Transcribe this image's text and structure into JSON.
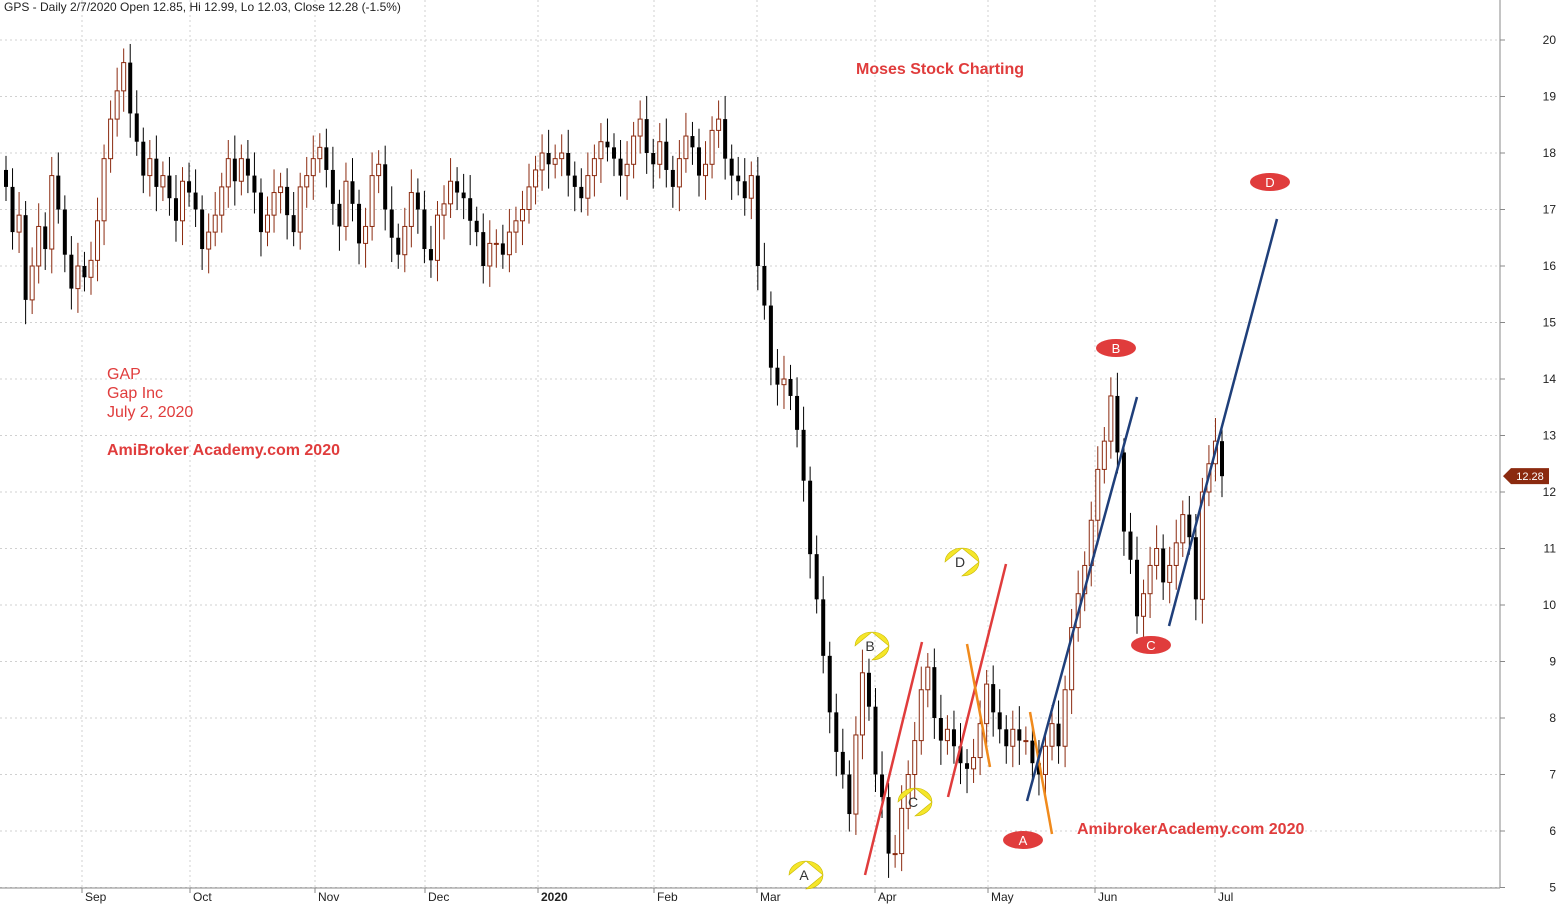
{
  "header": {
    "text": "GPS - Daily 2/7/2020 Open 12.85, Hi 12.99, Lo 12.03, Close 12.28 (-1.5%)"
  },
  "annotations": {
    "moses": "Moses Stock Charting",
    "ticker": "GAP",
    "company": "Gap Inc",
    "date": "July 2, 2020",
    "site1": "AmiBroker Academy.com  2020",
    "site2": "AmibrokerAcademy.com 2020"
  },
  "chart_data": {
    "type": "candlestick",
    "y_ticks": [
      "5",
      "6",
      "7",
      "8",
      "9",
      "10",
      "11",
      "12",
      "13",
      "14",
      "15",
      "16",
      "17",
      "18",
      "19",
      "20"
    ],
    "ylim": [
      5,
      20.6
    ],
    "x_ticks": [
      "Sep",
      "Oct",
      "Nov",
      "Dec",
      "2020",
      "Feb",
      "Mar",
      "Apr",
      "May",
      "Jun",
      "Jul"
    ],
    "last_price": "12.28",
    "colors": {
      "up": "#8b2a0f",
      "down": "#000000",
      "red": "#e03c3c",
      "blue": "#1f3f7a",
      "orange": "#f08a1c",
      "yellow": "#f5e62a"
    },
    "closes": [
      17.4,
      16.6,
      16.9,
      15.4,
      16.0,
      16.7,
      16.3,
      17.6,
      17.0,
      16.2,
      15.6,
      16.0,
      15.8,
      16.1,
      16.8,
      17.9,
      18.6,
      19.1,
      19.6,
      18.7,
      18.2,
      17.6,
      17.9,
      17.4,
      17.6,
      17.2,
      16.8,
      17.5,
      17.3,
      17.0,
      16.3,
      16.6,
      16.9,
      17.4,
      17.9,
      17.5,
      17.9,
      17.6,
      17.3,
      16.6,
      16.9,
      17.3,
      17.4,
      16.9,
      16.6,
      17.4,
      17.6,
      17.9,
      18.1,
      17.7,
      17.1,
      16.7,
      17.5,
      17.1,
      16.4,
      16.7,
      17.6,
      17.8,
      17.0,
      16.5,
      16.2,
      16.7,
      17.3,
      17.0,
      16.3,
      16.1,
      16.9,
      17.1,
      17.5,
      17.3,
      17.2,
      16.8,
      16.6,
      16.0,
      16.4,
      16.4,
      16.2,
      16.6,
      16.8,
      17.0,
      17.4,
      17.7,
      18.0,
      17.8,
      17.9,
      18.0,
      17.6,
      17.4,
      17.2,
      17.6,
      17.9,
      18.2,
      18.1,
      17.9,
      17.6,
      17.8,
      18.3,
      18.6,
      18.0,
      17.8,
      18.2,
      17.7,
      17.4,
      17.9,
      18.3,
      18.1,
      17.6,
      17.8,
      18.4,
      18.6,
      17.9,
      17.6,
      17.5,
      17.2,
      17.6,
      16.0,
      15.3,
      14.2,
      13.9,
      14.0,
      13.7,
      13.1,
      12.2,
      10.9,
      10.1,
      9.1,
      8.1,
      7.4,
      7.0,
      6.3,
      7.7,
      8.8,
      8.2,
      7.0,
      6.6,
      5.6,
      5.6,
      6.4,
      7.0,
      7.6,
      8.5,
      8.9,
      8.0,
      7.6,
      7.8,
      7.5,
      7.2,
      7.1,
      7.3,
      7.9,
      8.6,
      8.1,
      7.8,
      7.5,
      7.8,
      7.6,
      7.6,
      7.2,
      7.0,
      7.5,
      7.9,
      7.5,
      8.5,
      9.6,
      10.2,
      10.7,
      11.5,
      12.4,
      12.9,
      13.7,
      12.7,
      11.3,
      10.8,
      9.8,
      10.2,
      10.7,
      11.0,
      10.4,
      10.7,
      11.1,
      11.6,
      11.2,
      10.1,
      12.0,
      12.5,
      12.9,
      12.28
    ]
  }
}
